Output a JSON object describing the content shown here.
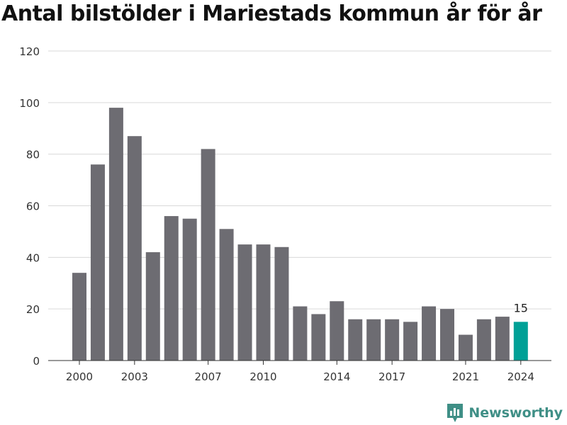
{
  "chart_data": {
    "type": "bar",
    "title": "Antal bilstölder i Mariestads kommun år för år",
    "x": [
      2000,
      2001,
      2002,
      2003,
      2004,
      2005,
      2006,
      2007,
      2008,
      2009,
      2010,
      2011,
      2012,
      2013,
      2014,
      2015,
      2016,
      2017,
      2018,
      2019,
      2020,
      2021,
      2022,
      2023,
      2024
    ],
    "values": [
      34,
      76,
      98,
      87,
      42,
      56,
      55,
      82,
      51,
      45,
      45,
      44,
      21,
      18,
      23,
      16,
      16,
      16,
      15,
      21,
      20,
      10,
      16,
      17,
      15
    ],
    "x_tick_labels": [
      "2000",
      "2003",
      "2007",
      "2010",
      "2014",
      "2017",
      "2021",
      "2024"
    ],
    "y_ticks": [
      0,
      20,
      40,
      60,
      80,
      100,
      120
    ],
    "ylim": [
      0,
      120
    ],
    "grid": true,
    "highlight": {
      "x": 2024,
      "label": "15"
    },
    "colors": {
      "bar": "#6d6c72",
      "highlight": "#00a096",
      "grid": "#d9d9d9",
      "axis": "#333333"
    }
  },
  "brand": {
    "name": "Newsworthy",
    "color": "#3f8f86"
  }
}
